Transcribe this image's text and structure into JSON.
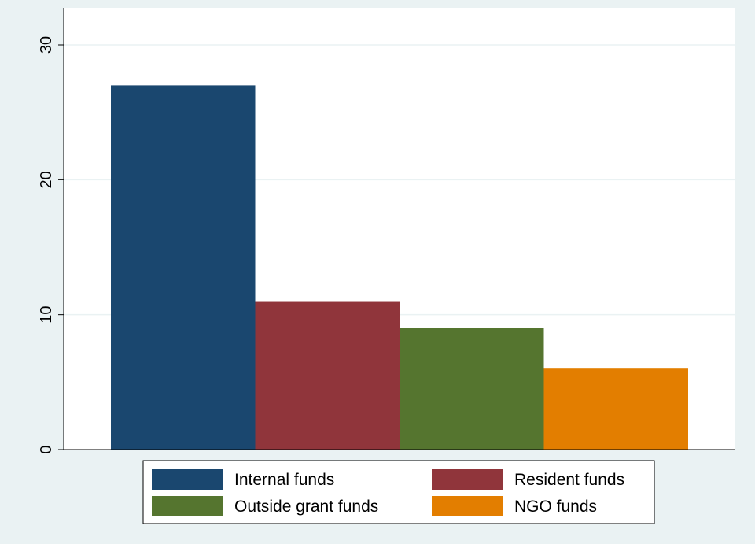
{
  "chart_data": {
    "type": "bar",
    "title": "",
    "xlabel": "",
    "ylabel": "",
    "ylim": [
      0,
      30
    ],
    "yticks": [
      0,
      10,
      20,
      30
    ],
    "grid": true,
    "legend_position": "bottom",
    "series": [
      {
        "name": "Internal funds",
        "value": 27,
        "color": "#1a476f"
      },
      {
        "name": "Resident funds",
        "value": 11,
        "color": "#90353b"
      },
      {
        "name": "Outside grant funds",
        "value": 9,
        "color": "#55752f"
      },
      {
        "name": "NGO funds",
        "value": 6,
        "color": "#e37e00"
      }
    ],
    "background_color": "#eaf2f3",
    "plot_background_color": "#ffffff"
  }
}
